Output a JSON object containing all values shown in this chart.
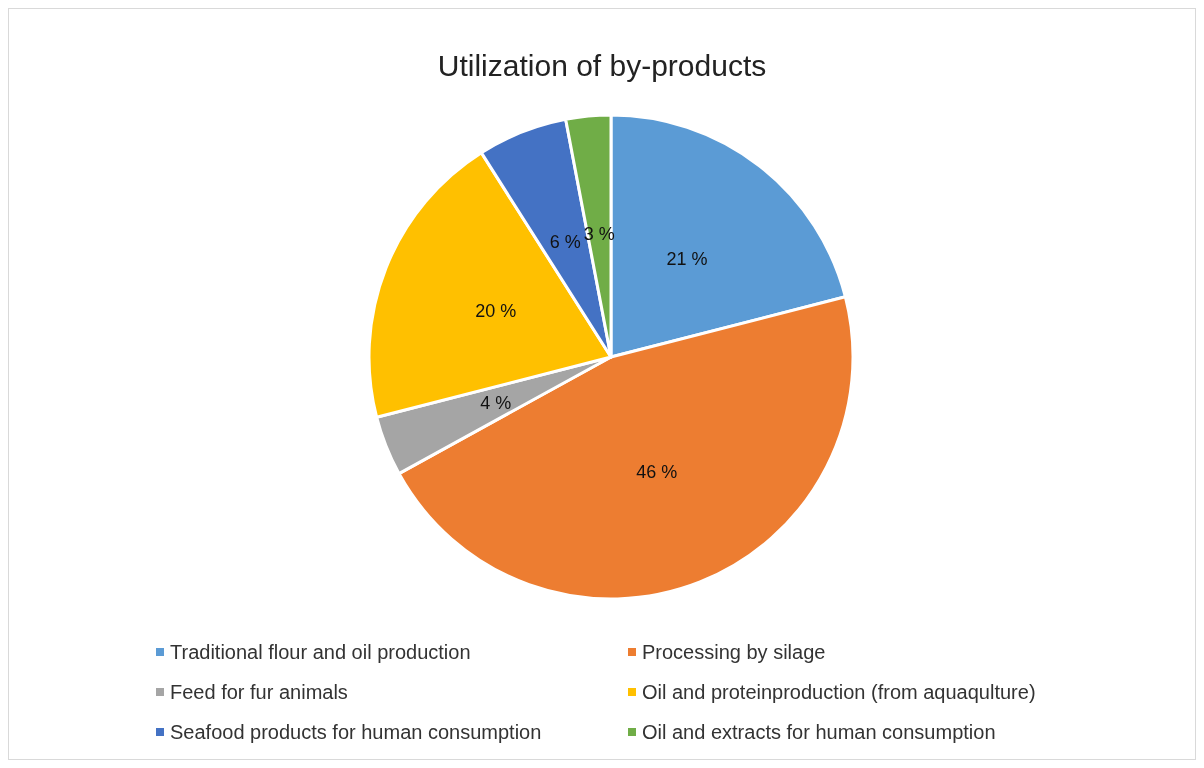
{
  "chart_data": {
    "type": "pie",
    "title": "Utilization of by-products",
    "categories": [
      "Traditional flour and oil production",
      "Processing by silage",
      "Feed for fur animals",
      "Oil and proteinproduction (from aquaqulture)",
      "Seafood products for human consumption",
      "Oil and extracts for human consumption"
    ],
    "values": [
      21,
      46,
      4,
      20,
      6,
      3
    ],
    "value_labels": [
      "21 %",
      "46 %",
      "4 %",
      "20 %",
      "6 %",
      "3 %"
    ],
    "colors": [
      "#5b9bd5",
      "#ed7d31",
      "#a5a5a5",
      "#ffc000",
      "#4472c4",
      "#70ad47"
    ],
    "legend": "bottom"
  }
}
